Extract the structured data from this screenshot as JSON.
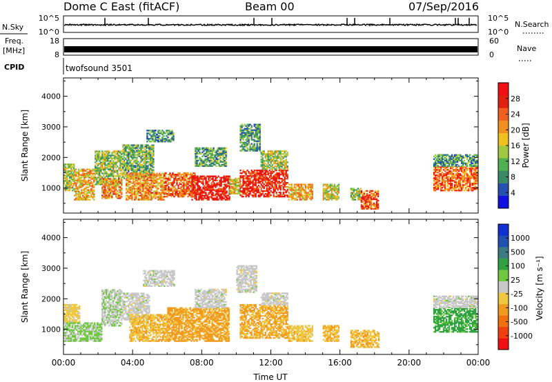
{
  "header": {
    "title": "Dome C East (fitACF)",
    "beam": "Beam 00",
    "date": "07/Sep/2016"
  },
  "strips": {
    "nsky_label": "N.Sky",
    "nsky_ticks": [
      "10^5",
      "10^0"
    ],
    "nsearch_label": "N.Search",
    "nsearch_ticks": [
      "10^5",
      "10^0"
    ],
    "freq_label": "Freq.",
    "freq_unit": "[MHz]",
    "freq_ticks": [
      "18",
      "8"
    ],
    "nave_label": "Nave",
    "nave_ticks": [
      "60",
      "0"
    ],
    "cpid_label": "CPID",
    "cpid_value": "twofsound 3501"
  },
  "colors": {
    "power_scale": [
      "#1010e0",
      "#2850b0",
      "#3a8a6a",
      "#50b050",
      "#a0c840",
      "#f0c020",
      "#f09020",
      "#f06020",
      "#e02010",
      "#f01010"
    ],
    "velocity_scale": [
      "#f01010",
      "#f04010",
      "#f07010",
      "#f09a20",
      "#f0c840",
      "#c8c8c8",
      "#70c840",
      "#30a040",
      "#3a7a80",
      "#2050b0",
      "#1030d0"
    ]
  },
  "chart_data": [
    {
      "type": "heatmap",
      "panel": "power",
      "xlabel": "Time UT",
      "ylabel": "Slant Range [km]",
      "x_ticks": [
        "00:00",
        "04:00",
        "08:00",
        "12:00",
        "16:00",
        "20:00",
        "00:00"
      ],
      "y_ticks": [
        "1000",
        "2000",
        "3000",
        "4000"
      ],
      "xlim": [
        0,
        24
      ],
      "ylim": [
        180,
        4600
      ],
      "colorbar_label": "Power [dB]",
      "colorbar_ticks": [
        "4",
        "8",
        "12",
        "16",
        "20",
        "24",
        "28"
      ],
      "colorbar_range": [
        0,
        30
      ],
      "blobs": [
        {
          "t": [
            0.0,
            0.6
          ],
          "r": [
            900,
            1800
          ],
          "v": 14
        },
        {
          "t": [
            0.6,
            1.8
          ],
          "r": [
            600,
            1600
          ],
          "v": 18
        },
        {
          "t": [
            1.8,
            3.4
          ],
          "r": [
            1100,
            2200
          ],
          "v": 13
        },
        {
          "t": [
            2.2,
            3.4
          ],
          "r": [
            650,
            1300
          ],
          "v": 20
        },
        {
          "t": [
            3.4,
            5.2
          ],
          "r": [
            1300,
            2400
          ],
          "v": 11
        },
        {
          "t": [
            3.6,
            5.8
          ],
          "r": [
            600,
            1500
          ],
          "v": 19
        },
        {
          "t": [
            4.8,
            6.4
          ],
          "r": [
            2500,
            2900
          ],
          "v": 8
        },
        {
          "t": [
            5.8,
            7.6
          ],
          "r": [
            700,
            1500
          ],
          "v": 22
        },
        {
          "t": [
            7.4,
            9.6
          ],
          "r": [
            600,
            1400
          ],
          "v": 27
        },
        {
          "t": [
            7.6,
            9.4
          ],
          "r": [
            1700,
            2300
          ],
          "v": 10
        },
        {
          "t": [
            9.6,
            10.2
          ],
          "r": [
            800,
            1300
          ],
          "v": 16
        },
        {
          "t": [
            10.2,
            11.4
          ],
          "r": [
            2200,
            3100
          ],
          "v": 9
        },
        {
          "t": [
            10.2,
            13.0
          ],
          "r": [
            700,
            1600
          ],
          "v": 26
        },
        {
          "t": [
            11.4,
            13.0
          ],
          "r": [
            1600,
            2200
          ],
          "v": 13
        },
        {
          "t": [
            13.0,
            14.4
          ],
          "r": [
            600,
            1100
          ],
          "v": 18
        },
        {
          "t": [
            15.0,
            15.9
          ],
          "r": [
            600,
            1100
          ],
          "v": 15
        },
        {
          "t": [
            16.6,
            17.2
          ],
          "r": [
            600,
            1000
          ],
          "v": 13
        },
        {
          "t": [
            17.2,
            18.2
          ],
          "r": [
            300,
            900
          ],
          "v": 23
        },
        {
          "t": [
            21.4,
            23.9
          ],
          "r": [
            900,
            1700
          ],
          "v": 22
        },
        {
          "t": [
            21.4,
            23.9
          ],
          "r": [
            1700,
            2100
          ],
          "v": 9
        }
      ]
    },
    {
      "type": "heatmap",
      "panel": "velocity",
      "xlabel": "Time UT",
      "ylabel": "Slant Range [km]",
      "x_ticks": [
        "00:00",
        "04:00",
        "08:00",
        "12:00",
        "16:00",
        "20:00",
        "00:00"
      ],
      "y_ticks": [
        "1000",
        "2000",
        "3000",
        "4000"
      ],
      "xlim": [
        0,
        24
      ],
      "ylim": [
        180,
        4600
      ],
      "colorbar_label": "Velocity [m s⁻¹]",
      "colorbar_ticks": [
        "-1000",
        "-500",
        "-100",
        "-25",
        "25",
        "100",
        "500",
        "1000"
      ],
      "colorbar_range": [
        -1200,
        1200
      ],
      "blobs": [
        {
          "t": [
            0.0,
            0.9
          ],
          "r": [
            1200,
            1800
          ],
          "v": -200
        },
        {
          "t": [
            0.0,
            2.2
          ],
          "r": [
            600,
            1200
          ],
          "v": 150
        },
        {
          "t": [
            2.2,
            3.4
          ],
          "r": [
            1100,
            2300
          ],
          "v": 80
        },
        {
          "t": [
            3.4,
            5.0
          ],
          "r": [
            1300,
            2200
          ],
          "v": 0
        },
        {
          "t": [
            3.8,
            6.0
          ],
          "r": [
            600,
            1500
          ],
          "v": -300
        },
        {
          "t": [
            4.6,
            6.4
          ],
          "r": [
            2400,
            2900
          ],
          "v": 0
        },
        {
          "t": [
            6.0,
            9.6
          ],
          "r": [
            600,
            1700
          ],
          "v": -400
        },
        {
          "t": [
            7.6,
            9.4
          ],
          "r": [
            1700,
            2300
          ],
          "v": 0
        },
        {
          "t": [
            10.0,
            11.2
          ],
          "r": [
            2200,
            3100
          ],
          "v": 0
        },
        {
          "t": [
            10.2,
            13.0
          ],
          "r": [
            700,
            1800
          ],
          "v": -350
        },
        {
          "t": [
            11.4,
            13.0
          ],
          "r": [
            1800,
            2200
          ],
          "v": 0
        },
        {
          "t": [
            13.0,
            14.4
          ],
          "r": [
            600,
            1100
          ],
          "v": -250
        },
        {
          "t": [
            15.0,
            15.9
          ],
          "r": [
            600,
            1100
          ],
          "v": -300
        },
        {
          "t": [
            16.6,
            18.2
          ],
          "r": [
            400,
            950
          ],
          "v": -300
        },
        {
          "t": [
            21.4,
            23.9
          ],
          "r": [
            900,
            1700
          ],
          "v": 400
        },
        {
          "t": [
            21.4,
            23.9
          ],
          "r": [
            1700,
            2100
          ],
          "v": 0
        }
      ]
    }
  ]
}
